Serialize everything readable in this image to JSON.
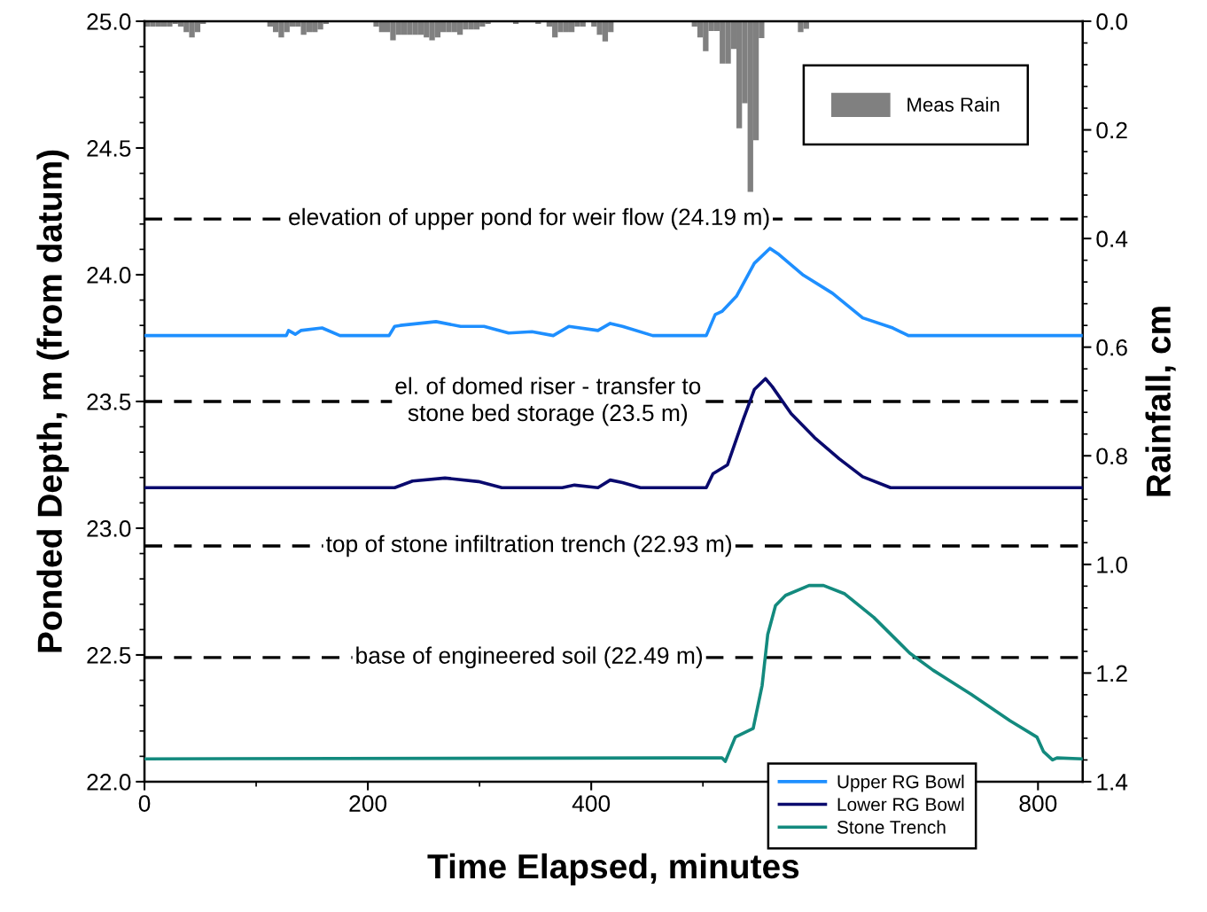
{
  "chart_data": {
    "type": "line",
    "xlabel": "Time Elapsed, minutes",
    "ylabel": "Ponded Depth, m (from datum)",
    "y2label": "Rainfall, cm",
    "xlim": [
      0,
      840
    ],
    "xticks": [
      0,
      200,
      400,
      800
    ],
    "ylim": [
      22.0,
      25.0
    ],
    "yticks": [
      {
        "value": 22.0,
        "label": "22.0"
      },
      {
        "value": 22.5,
        "label": "22.5"
      },
      {
        "value": 23.0,
        "label": "23.0"
      },
      {
        "value": 23.5,
        "label": "23.5"
      },
      {
        "value": 24.0,
        "label": "24.0"
      },
      {
        "value": 24.5,
        "label": "24.5"
      },
      {
        "value": 25.0,
        "label": "25.0"
      }
    ],
    "y2lim": [
      1.4,
      0.0
    ],
    "y2ticks": [
      {
        "value": 0.0,
        "label": "0.0"
      },
      {
        "value": 0.2,
        "label": "0.2"
      },
      {
        "value": 0.4,
        "label": "0.4"
      },
      {
        "value": 0.6,
        "label": "0.6"
      },
      {
        "value": 0.8,
        "label": "0.8"
      },
      {
        "value": 1.0,
        "label": "1.0"
      },
      {
        "value": 1.2,
        "label": "1.2"
      },
      {
        "value": 1.4,
        "label": "1.4"
      }
    ],
    "grid": false,
    "legend": "bottom right",
    "line_style": "solid",
    "marker": "none",
    "ref_lines": [
      {
        "axis": "y",
        "value": 24.22,
        "label": "elevation of upper pond for weir flow (24.19 m)",
        "color": "#000000",
        "line_style": "dashed"
      },
      {
        "axis": "y",
        "value": 23.5,
        "label": "el. of domed riser - transfer to\nstone bed storage (23.5 m)",
        "color": "#000000",
        "line_style": "dashed"
      },
      {
        "axis": "y",
        "value": 22.93,
        "label": "top of stone infiltration trench (22.93 m)",
        "color": "#000000",
        "line_style": "dashed"
      },
      {
        "axis": "y",
        "value": 22.49,
        "label": "base of engineered soil (22.49 m)",
        "color": "#000000",
        "line_style": "dashed"
      }
    ],
    "series": [
      {
        "name": "Meas Rain",
        "type": "bar",
        "axis": "y2",
        "color": "#808080",
        "x": [
          2.5,
          7.5,
          12.5,
          17.5,
          22.5,
          27.5,
          32.5,
          37.5,
          42.5,
          47.5,
          52.5,
          112.5,
          117.5,
          122.5,
          127.5,
          132.5,
          137.5,
          142.5,
          147.5,
          152.5,
          157.5,
          162.5,
          207.5,
          212.5,
          217.5,
          222.5,
          227.5,
          232.5,
          237.5,
          242.5,
          247.5,
          252.5,
          257.5,
          262.5,
          267.5,
          272.5,
          277.5,
          282.5,
          287.5,
          292.5,
          297.5,
          302.5,
          307.5,
          332.5,
          352.5,
          362.5,
          367.5,
          372.5,
          377.5,
          382.5,
          387.5,
          392.5,
          402.5,
          407.5,
          412.5,
          417.5,
          492.5,
          497.5,
          502.5,
          507.5,
          512.5,
          517.5,
          522.5,
          527.5,
          532.5,
          537.5,
          542.5,
          547.5,
          552.5,
          587.5,
          592.5
        ],
        "values": [
          0.01,
          0.01,
          0.01,
          0.01,
          0.01,
          0.005,
          0.01,
          0.02,
          0.03,
          0.02,
          0.005,
          0.01,
          0.02,
          0.03,
          0.02,
          0.01,
          0.01,
          0.025,
          0.02,
          0.02,
          0.015,
          0.005,
          0.01,
          0.02,
          0.02,
          0.035,
          0.025,
          0.025,
          0.025,
          0.025,
          0.025,
          0.03,
          0.035,
          0.03,
          0.02,
          0.02,
          0.02,
          0.025,
          0.015,
          0.015,
          0.015,
          0.01,
          0.005,
          0.005,
          0.005,
          0.01,
          0.03,
          0.02,
          0.02,
          0.02,
          0.01,
          0.01,
          0.01,
          0.025,
          0.037,
          0.02,
          0.01,
          0.03,
          0.055,
          0.018,
          0.018,
          0.078,
          0.078,
          0.051,
          0.197,
          0.151,
          0.314,
          0.219,
          0.031,
          0.02,
          0.014
        ]
      },
      {
        "name": "Upper RG Bowl",
        "color": "#1e8fff",
        "x": [
          0,
          127,
          129,
          135,
          140,
          159,
          175,
          219,
          224,
          229,
          261,
          283,
          304,
          326,
          347,
          366,
          380,
          406,
          417,
          428,
          455,
          503,
          511,
          517,
          530,
          546,
          560,
          568,
          590,
          616,
          643,
          670,
          684,
          840
        ],
        "values": [
          23.76,
          23.76,
          23.78,
          23.765,
          23.78,
          23.79,
          23.76,
          23.76,
          23.796,
          23.8,
          23.815,
          23.796,
          23.796,
          23.77,
          23.775,
          23.76,
          23.796,
          23.78,
          23.808,
          23.796,
          23.76,
          23.76,
          23.843,
          23.855,
          23.915,
          24.045,
          24.104,
          24.08,
          23.998,
          23.927,
          23.83,
          23.79,
          23.76,
          23.76
        ]
      },
      {
        "name": "Lower RG Bowl",
        "color": "#0a0a6e",
        "x": [
          0,
          224,
          240,
          269,
          299,
          320,
          374,
          385,
          406,
          417,
          428,
          444,
          503,
          509,
          522,
          536,
          546,
          556,
          562,
          579,
          600,
          622,
          643,
          668,
          840
        ],
        "values": [
          23.16,
          23.16,
          23.186,
          23.198,
          23.184,
          23.16,
          23.16,
          23.17,
          23.16,
          23.19,
          23.18,
          23.16,
          23.16,
          23.215,
          23.25,
          23.428,
          23.547,
          23.59,
          23.559,
          23.452,
          23.357,
          23.274,
          23.203,
          23.16,
          23.16
        ]
      },
      {
        "name": "Stone Trench",
        "color": "#138a7e",
        "x": [
          0,
          517,
          520,
          529,
          545,
          553,
          558,
          565,
          574,
          595,
          608,
          627,
          653,
          685,
          706,
          740,
          775,
          799,
          805,
          813,
          817,
          840
        ],
        "values": [
          22.09,
          22.094,
          22.08,
          22.176,
          22.21,
          22.38,
          22.58,
          22.695,
          22.735,
          22.774,
          22.774,
          22.741,
          22.648,
          22.508,
          22.44,
          22.345,
          22.24,
          22.176,
          22.118,
          22.086,
          22.094,
          22.09
        ]
      }
    ]
  }
}
